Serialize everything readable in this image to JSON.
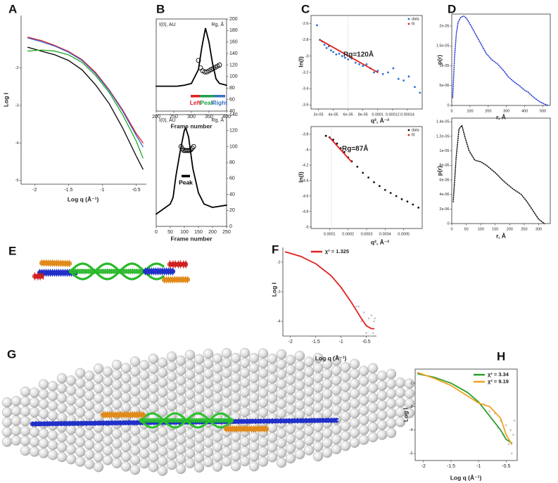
{
  "chart_data": [
    {
      "type": "line",
      "panel": "A",
      "frame": "left-bottom",
      "xlabel": "Log q (Å⁻¹)",
      "ylabel": "Log I",
      "xlim": [
        -2.2,
        -0.35
      ],
      "ylim": [
        -5.1,
        -0.6
      ],
      "xticks": [
        -2,
        -1.5,
        -1,
        -0.5
      ],
      "yticks": [
        -5,
        -4,
        -3,
        -2
      ],
      "series": [
        {
          "color": "#000000",
          "style": "line",
          "x": [
            -2.1,
            -1.9,
            -1.7,
            -1.5,
            -1.3,
            -1.1,
            -0.9,
            -0.7,
            -0.5,
            -0.4
          ],
          "values": [
            -1.45,
            -1.55,
            -1.65,
            -1.8,
            -2.05,
            -2.45,
            -2.95,
            -3.6,
            -4.35,
            -4.7
          ]
        },
        {
          "color": "#22aa22",
          "style": "line",
          "x": [
            -2.1,
            -1.9,
            -1.7,
            -1.5,
            -1.3,
            -1.1,
            -0.9,
            -0.7,
            -0.5,
            -0.4
          ],
          "values": [
            -1.55,
            -1.52,
            -1.55,
            -1.65,
            -1.85,
            -2.2,
            -2.65,
            -3.25,
            -3.95,
            -4.4
          ]
        },
        {
          "color": "#e02020",
          "style": "line",
          "x": [
            -2.1,
            -1.9,
            -1.7,
            -1.5,
            -1.3,
            -1.1,
            -0.9,
            -0.7,
            -0.5,
            -0.4
          ],
          "values": [
            -1.18,
            -1.27,
            -1.4,
            -1.56,
            -1.78,
            -2.12,
            -2.58,
            -3.12,
            -3.75,
            -4.0
          ]
        },
        {
          "color": "#3a5fd0",
          "style": "line",
          "x": [
            -2.1,
            -1.9,
            -1.7,
            -1.5,
            -1.3,
            -1.1,
            -0.9,
            -0.7,
            -0.5,
            -0.4
          ],
          "values": [
            -1.2,
            -1.3,
            -1.42,
            -1.58,
            -1.8,
            -2.15,
            -2.6,
            -3.15,
            -3.8,
            -4.1
          ]
        }
      ]
    },
    {
      "type": "line",
      "panel": "B",
      "frame": "box",
      "xlabel": "Frame number",
      "ylabel": "I(0), AU",
      "y2label": "Rg, Å",
      "xlim": [
        200,
        400
      ],
      "ylim": [
        0,
        100
      ],
      "xticks": [
        200,
        250,
        300,
        350,
        400
      ],
      "y2lim": [
        40,
        200
      ],
      "y2ticks": [
        40,
        60,
        80,
        100,
        120,
        140,
        160,
        180,
        200
      ],
      "series": [
        {
          "color": "#000000",
          "style": "line",
          "x": [
            200,
            260,
            280,
            300,
            320,
            330,
            340,
            350,
            360,
            370,
            380,
            400
          ],
          "values": [
            27,
            27,
            28,
            30,
            45,
            70,
            90,
            75,
            52,
            35,
            30,
            28
          ]
        },
        {
          "color": "#000000",
          "style": "open-circles",
          "axis": "y2",
          "x": [
            320,
            326,
            332,
            338,
            344,
            350,
            356,
            362,
            368,
            374,
            380
          ],
          "values": [
            128,
            115,
            110,
            108,
            108,
            110,
            112,
            114,
            116,
            118,
            120
          ]
        }
      ],
      "ranges": [
        {
          "label": "Left",
          "start": 298,
          "end": 324,
          "color": "#e02020"
        },
        {
          "label": "Peak",
          "start": 324,
          "end": 365,
          "color": "#20a050"
        },
        {
          "label": "Right",
          "start": 365,
          "end": 396,
          "color": "#3a70c0"
        }
      ],
      "range_level": 66
    },
    {
      "type": "line",
      "panel": "",
      "frame": "box",
      "xlabel": "Frame number",
      "ylabel": "I(0), AU",
      "y2label": "Rg, Å",
      "xlim": [
        0,
        250
      ],
      "ylim": [
        0,
        100
      ],
      "xticks": [
        0,
        50,
        100,
        150,
        200,
        250
      ],
      "y2lim": [
        0,
        140
      ],
      "y2ticks": [
        0,
        20,
        40,
        60,
        80,
        100,
        120,
        140
      ],
      "series": [
        {
          "color": "#000000",
          "style": "line",
          "x": [
            0,
            50,
            60,
            70,
            85,
            100,
            105,
            115,
            130,
            150,
            170,
            200,
            250
          ],
          "values": [
            11,
            20,
            26,
            45,
            67,
            86,
            88,
            80,
            52,
            30,
            20,
            17,
            19
          ]
        },
        {
          "color": "#000000",
          "style": "open-circles",
          "axis": "y2",
          "x": [
            88,
            93,
            98,
            103,
            108,
            113,
            118,
            123,
            128,
            133
          ],
          "values": [
            100,
            97,
            95,
            95,
            95,
            95,
            95,
            96,
            98,
            100
          ]
        }
      ],
      "ranges": [
        {
          "label": "Peak",
          "start": 90,
          "end": 120,
          "color": "#000000"
        }
      ],
      "range_level": 63
    },
    {
      "type": "scatter",
      "panel": "C",
      "frame": "box",
      "xlabel": "q², Å⁻²",
      "ylabel": "ln(I)",
      "annotation": "Rg=120Å",
      "legend": "upper right",
      "xlim": [
        1e-05,
        0.00016
      ],
      "ylim": [
        -3.65,
        -2.5
      ],
      "xticks": [
        {
          "value": 2e-05,
          "label": "2e-05"
        },
        {
          "value": 4e-05,
          "label": "4e-05"
        },
        {
          "value": 6e-05,
          "label": "6e-05"
        },
        {
          "value": 8e-05,
          "label": "8e-05"
        },
        0.0001,
        0.00012,
        0.00014
      ],
      "yticks": [
        -3.6,
        -3.4,
        -3.2,
        -3,
        -2.8,
        -2.6
      ],
      "vline": 6e-05,
      "series": [
        {
          "name": "data",
          "color": "#2a6fd6",
          "style": "points",
          "x": [
            1.8e-05,
            2.2e-05,
            2.5e-05,
            2.8e-05,
            3.1e-05,
            3.4e-05,
            3.7e-05,
            4e-05,
            4.4e-05,
            4.8e-05,
            5.2e-05,
            5.6e-05,
            6e-05,
            6.5e-05,
            7e-05,
            7.5e-05,
            8e-05,
            8.5e-05,
            9e-05,
            9.5e-05,
            0.0001,
            0.000107,
            0.000114,
            0.000121,
            0.000128,
            0.000135,
            0.000142,
            0.00015,
            0.000157
          ],
          "values": [
            -2.62,
            -2.8,
            -2.82,
            -2.86,
            -2.9,
            -2.88,
            -2.93,
            -2.95,
            -2.98,
            -2.97,
            -3.0,
            -3.02,
            -3.04,
            -3.03,
            -3.08,
            -3.1,
            -3.12,
            -3.1,
            -3.15,
            -3.2,
            -3.18,
            -3.22,
            -3.2,
            -3.15,
            -3.28,
            -3.3,
            -3.25,
            -3.38,
            -3.45
          ]
        },
        {
          "name": "fit",
          "color": "#e02020",
          "style": "line",
          "x": [
            2.2e-05,
            0.0001
          ],
          "values": [
            -2.8,
            -3.2
          ]
        }
      ]
    },
    {
      "type": "scatter",
      "panel": "",
      "frame": "box",
      "xlabel": "q², Å⁻²",
      "ylabel": "ln(I)",
      "annotation": "Rg=87Å",
      "legend": "upper right",
      "xlim": [
        0,
        0.0006
      ],
      "ylim": [
        -5.02,
        -3.7
      ],
      "xticks": [
        0.0001,
        0.0002,
        0.0003,
        0.0004,
        0.0005
      ],
      "yticks": [
        -5,
        -4.8,
        -4.6,
        -4.4,
        -4.2,
        -4,
        -3.8
      ],
      "vline": 0.00011,
      "series": [
        {
          "name": "data",
          "color": "#111111",
          "style": "points",
          "x": [
            8e-05,
            0.0001,
            0.00012,
            0.00014,
            0.00016,
            0.00018,
            0.0002,
            0.00022,
            0.00025,
            0.00028,
            0.00031,
            0.00034,
            0.00037,
            0.0004,
            0.00043,
            0.00046,
            0.00049,
            0.00052,
            0.00055,
            0.00058
          ],
          "values": [
            -3.82,
            -3.84,
            -3.87,
            -3.92,
            -3.98,
            -4.03,
            -4.1,
            -4.15,
            -4.22,
            -4.3,
            -4.36,
            -4.42,
            -4.47,
            -4.52,
            -4.56,
            -4.6,
            -4.64,
            -4.67,
            -4.71,
            -4.75
          ]
        },
        {
          "name": "fit",
          "color": "#e02020",
          "style": "line",
          "x": [
            0.0001,
            0.00022
          ],
          "values": [
            -3.84,
            -4.16
          ]
        }
      ]
    },
    {
      "type": "scatter",
      "panel": "D",
      "frame": "box",
      "xlabel": "r, Å",
      "ylabel": "p(r)",
      "xlim": [
        0,
        540
      ],
      "ylim": [
        0,
        2.3e-05
      ],
      "xticks": [
        0,
        100,
        200,
        300,
        400,
        500
      ],
      "yticks": [
        0,
        {
          "value": 5e-06,
          "label": "5e-06"
        },
        {
          "value": 1e-05,
          "label": "1e-05"
        },
        {
          "value": 1.5e-05,
          "label": "1.5e-05"
        },
        {
          "value": 2e-05,
          "label": "2e-05"
        }
      ],
      "series": [
        {
          "color": "#2a3fd6",
          "style": "dotted-line",
          "x": [
            5,
            15,
            25,
            35,
            50,
            65,
            80,
            100,
            130,
            160,
            190,
            220,
            250,
            280,
            310,
            340,
            370,
            400,
            420,
            450,
            480,
            510,
            530
          ],
          "values": [
            2e-06,
            1.2e-05,
            1.8e-05,
            2.1e-05,
            2.22e-05,
            2.25e-05,
            2.2e-05,
            2.05e-05,
            1.8e-05,
            1.55e-05,
            1.3e-05,
            1.15e-05,
            1.05e-05,
            9e-06,
            7.2e-06,
            6e-06,
            5e-06,
            3.8e-06,
            3.3e-06,
            2e-06,
            1e-06,
            3e-07,
            0
          ]
        }
      ]
    },
    {
      "type": "scatter",
      "panel": "",
      "frame": "box",
      "xlabel": "r, Å",
      "ylabel": "p(r)",
      "xlim": [
        0,
        340
      ],
      "ylim": [
        0,
        1.45e-05
      ],
      "xticks": [
        0,
        50,
        100,
        150,
        200,
        250,
        300
      ],
      "yticks": [
        0,
        {
          "value": 2e-06,
          "label": "2e-06"
        },
        {
          "value": 4e-06,
          "label": "4e-06"
        },
        {
          "value": 6e-06,
          "label": "6e-06"
        },
        {
          "value": 8e-06,
          "label": "8e-06"
        },
        {
          "value": 1e-05,
          "label": "1e-05"
        },
        {
          "value": 1.2e-05,
          "label": "1.2e-05"
        },
        {
          "value": 1.4e-05,
          "label": "1.4e-05"
        }
      ],
      "series": [
        {
          "color": "#111111",
          "style": "dotted-line",
          "x": [
            5,
            15,
            25,
            35,
            45,
            60,
            80,
            100,
            120,
            150,
            180,
            210,
            240,
            260,
            280,
            300,
            320
          ],
          "values": [
            3e-06,
            9e-06,
            1.3e-05,
            1.35e-05,
            1.2e-05,
            1e-05,
            8.7e-06,
            8.5e-06,
            8e-06,
            7e-06,
            5.8e-06,
            4.8e-06,
            4e-06,
            3e-06,
            1.8e-06,
            6e-07,
            0
          ]
        }
      ]
    },
    {
      "type": "line",
      "panel": "F",
      "frame": "left-bottom",
      "xlabel": "Log q (Å⁻¹)",
      "ylabel": "Log I",
      "legend": "upper center",
      "xlim": [
        -2.15,
        -0.3
      ],
      "ylim": [
        -4.5,
        -1.5
      ],
      "xticks": [
        -2,
        -1.5,
        -1,
        -0.5
      ],
      "yticks": [
        -4,
        -3,
        -2
      ],
      "series": [
        {
          "color": "#c8c8c8",
          "style": "points",
          "x": [
            -0.7,
            -0.65,
            -0.6,
            -0.55,
            -0.5,
            -0.45,
            -0.42,
            -0.4,
            -0.37,
            -0.35,
            -0.33
          ],
          "values": [
            -3.5,
            -3.5,
            -4.0,
            -3.7,
            -4.4,
            -3.9,
            -4.5,
            -3.8,
            -4.4,
            -4.0,
            -3.9
          ]
        },
        {
          "name": "χ² = 1.325",
          "color": "#e02020",
          "style": "line",
          "x": [
            -2.1,
            -1.8,
            -1.5,
            -1.2,
            -1.0,
            -0.8,
            -0.6,
            -0.5,
            -0.4,
            -0.35
          ],
          "values": [
            -1.65,
            -1.8,
            -2.05,
            -2.45,
            -2.85,
            -3.35,
            -3.9,
            -4.15,
            -4.25,
            -4.25
          ]
        }
      ]
    },
    {
      "type": "line",
      "panel": "H",
      "frame": "box",
      "xlabel": "Log q (Å⁻¹)",
      "ylabel": "Log I",
      "legend": "upper right",
      "xlim": [
        -2.15,
        -0.3
      ],
      "ylim": [
        -5.3,
        -1.4
      ],
      "xticks": [
        -2,
        -1.5,
        -1,
        -0.5
      ],
      "yticks": [
        -5,
        -4,
        -3,
        -2
      ],
      "series": [
        {
          "color": "#c8c8c8",
          "style": "points",
          "x": [
            -0.9,
            -0.8,
            -0.7,
            -0.65,
            -0.6,
            -0.55,
            -0.5,
            -0.45,
            -0.42,
            -0.4,
            -0.37,
            -0.35
          ],
          "values": [
            -2.9,
            -3.2,
            -3.3,
            -3.9,
            -3.6,
            -4.2,
            -3.8,
            -4.6,
            -4.0,
            -5.0,
            -4.2,
            -3.6
          ]
        },
        {
          "name": "χ² = 3.34",
          "color": "#2aa02a",
          "style": "line",
          "x": [
            -2.1,
            -1.8,
            -1.5,
            -1.2,
            -1.0,
            -0.8,
            -0.6,
            -0.5,
            -0.4
          ],
          "values": [
            -1.6,
            -1.75,
            -2.0,
            -2.4,
            -2.8,
            -3.4,
            -4.0,
            -4.4,
            -4.55
          ]
        },
        {
          "name": "χ² = 9.19",
          "color": "#f0a020",
          "style": "line",
          "x": [
            -2.1,
            -1.8,
            -1.5,
            -1.2,
            -1.0,
            -0.8,
            -0.6,
            -0.5,
            -0.4
          ],
          "values": [
            -1.55,
            -1.8,
            -2.1,
            -2.55,
            -2.85,
            -3.0,
            -3.5,
            -4.2,
            -4.6
          ]
        }
      ]
    }
  ],
  "structure_panels": [
    "E",
    "G"
  ]
}
